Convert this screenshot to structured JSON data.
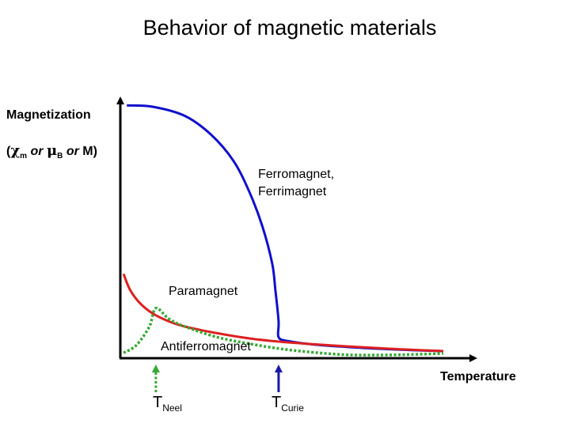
{
  "title": "Behavior of magnetic materials",
  "y_axis": {
    "label": "Magnetization",
    "symbols": {
      "open_paren": "(",
      "chi": "χ",
      "chi_sub": "m",
      "or1": " or ",
      "mu": "μ",
      "mu_sub": "B",
      "or2": " or ",
      "m": "M)"
    }
  },
  "x_axis": {
    "label": "Temperature"
  },
  "markers": {
    "neel": {
      "main": "T",
      "sub": "Neel"
    },
    "curie": {
      "main": "T",
      "sub": "Curie"
    }
  },
  "chart_data": {
    "type": "line",
    "title": "Behavior of magnetic materials",
    "xlabel": "Temperature",
    "ylabel": "Magnetization (χm or μB or M)",
    "xlim": [
      0,
      1
    ],
    "ylim": [
      0,
      1
    ],
    "grid": false,
    "ticks": "none",
    "vertical_markers": [
      {
        "name": "T_Neel",
        "x": 0.11,
        "style": "dotted",
        "color": "#33aa33"
      },
      {
        "name": "T_Curie",
        "x": 0.49,
        "style": "solid",
        "color": "#1a1aa6"
      }
    ],
    "series": [
      {
        "name": "Ferromagnet, Ferrimagnet",
        "color": "#1010cc",
        "style": "solid",
        "x": [
          0.02,
          0.1,
          0.2,
          0.28,
          0.35,
          0.4,
          0.44,
          0.47,
          0.48,
          0.49,
          0.49,
          0.52,
          0.6,
          0.7,
          0.8,
          0.9,
          1.0
        ],
        "y": [
          0.96,
          0.955,
          0.92,
          0.85,
          0.75,
          0.63,
          0.5,
          0.36,
          0.26,
          0.14,
          0.08,
          0.065,
          0.052,
          0.043,
          0.036,
          0.031,
          0.027
        ]
      },
      {
        "name": "Paramagnet",
        "color": "#dd2020",
        "style": "solid",
        "x": [
          0.01,
          0.03,
          0.06,
          0.1,
          0.15,
          0.2,
          0.3,
          0.4,
          0.5,
          0.6,
          0.7,
          0.8,
          0.9,
          1.0
        ],
        "y": [
          0.32,
          0.26,
          0.21,
          0.17,
          0.14,
          0.12,
          0.095,
          0.075,
          0.062,
          0.053,
          0.045,
          0.038,
          0.032,
          0.027
        ]
      },
      {
        "name": "Antiferromagnet",
        "color": "#33aa33",
        "style": "dotted",
        "x": [
          0.01,
          0.05,
          0.09,
          0.11,
          0.15,
          0.2,
          0.3,
          0.4,
          0.5,
          0.6,
          0.7,
          0.8,
          0.9,
          1.0
        ],
        "y": [
          0.02,
          0.05,
          0.12,
          0.19,
          0.15,
          0.12,
          0.08,
          0.055,
          0.035,
          0.022,
          0.013,
          0.012,
          0.014,
          0.018
        ]
      }
    ],
    "annotations": [
      {
        "text": "Ferromagnet,",
        "series": "Ferromagnet, Ferrimagnet"
      },
      {
        "text": "Ferrimagnet",
        "series": "Ferromagnet, Ferrimagnet"
      },
      {
        "text": "Paramagnet",
        "series": "Paramagnet"
      },
      {
        "text": "Antiferromagnet",
        "series": "Antiferromagnet"
      }
    ]
  }
}
